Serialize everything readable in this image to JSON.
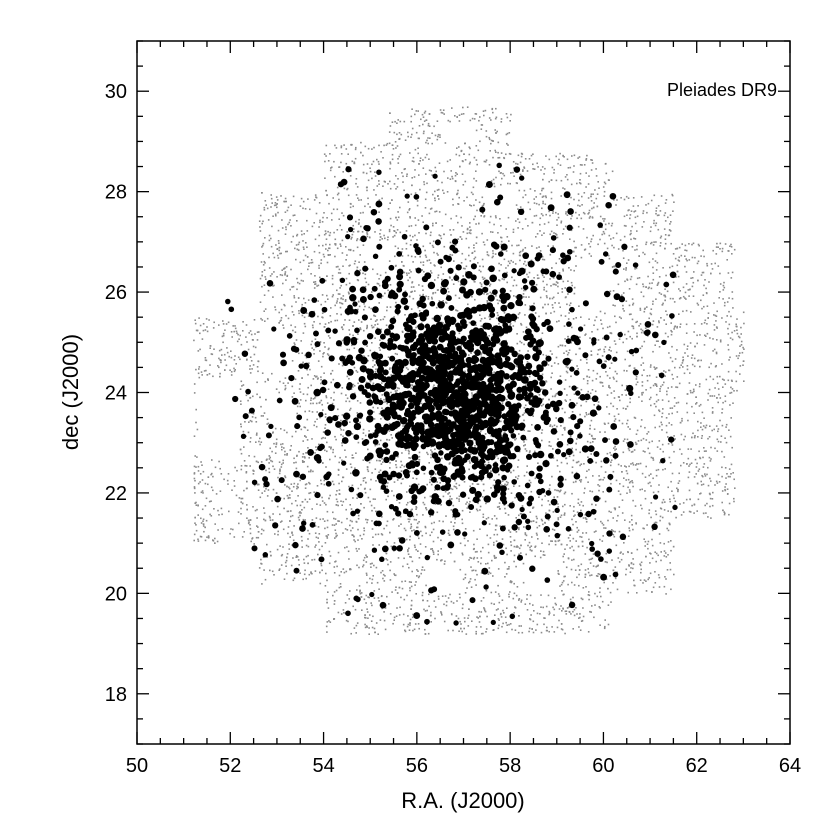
{
  "chart_data": {
    "type": "scatter",
    "annotation": "Pleiades DR9",
    "xlabel": "R.A. (J2000)",
    "ylabel": "dec (J2000)",
    "xlim": [
      50,
      64
    ],
    "ylim": [
      17,
      31
    ],
    "x_ticks": [
      50,
      52,
      54,
      56,
      58,
      60,
      62,
      64
    ],
    "y_ticks": [
      18,
      20,
      22,
      24,
      26,
      28,
      30
    ],
    "x_tick_labels": [
      "50",
      "52",
      "54",
      "56",
      "58",
      "60",
      "62",
      "64"
    ],
    "y_tick_labels": [
      "18",
      "20",
      "22",
      "24",
      "26",
      "28",
      "30"
    ],
    "grid": false,
    "colors": {
      "field": "#8c8c8c",
      "members": "#000000",
      "axes": "#000000"
    },
    "series": [
      {
        "role": "field",
        "marker": "small-dot",
        "footprint_blocks": [
          [
            51.2,
            52.6,
            21.0,
            25.5
          ],
          [
            52.6,
            54.0,
            20.2,
            28.0
          ],
          [
            54.0,
            55.4,
            19.2,
            29.0
          ],
          [
            55.4,
            58.0,
            19.2,
            29.7
          ],
          [
            58.0,
            60.2,
            19.2,
            28.8
          ],
          [
            60.2,
            61.5,
            20.0,
            28.0
          ],
          [
            61.5,
            62.8,
            21.5,
            27.0
          ],
          [
            62.3,
            63.0,
            24.0,
            25.8
          ]
        ],
        "footprint_gaps": [
          [
            51.3,
            52.2,
            22.7,
            24.3
          ],
          [
            52.6,
            53.3,
            24.4,
            25.3
          ],
          [
            52.8,
            53.3,
            23.3,
            24.0
          ],
          [
            54.9,
            55.4,
            26.5,
            27.0
          ],
          [
            56.5,
            57.2,
            29.0,
            29.4
          ],
          [
            57.5,
            58.1,
            27.6,
            28.1
          ],
          [
            56.2,
            56.9,
            20.0,
            20.6
          ],
          [
            58.3,
            59.0,
            20.0,
            20.7
          ],
          [
            59.4,
            60.1,
            25.8,
            26.7
          ],
          [
            62.8,
            63.2,
            22.0,
            24.0
          ]
        ]
      },
      {
        "role": "members",
        "marker": "filled-circle",
        "center": [
          56.8,
          24.0
        ],
        "core_radius": [
          1.4,
          1.3
        ],
        "extent": [
          51.9,
          61.7,
          19.3,
          28.8
        ]
      }
    ]
  }
}
